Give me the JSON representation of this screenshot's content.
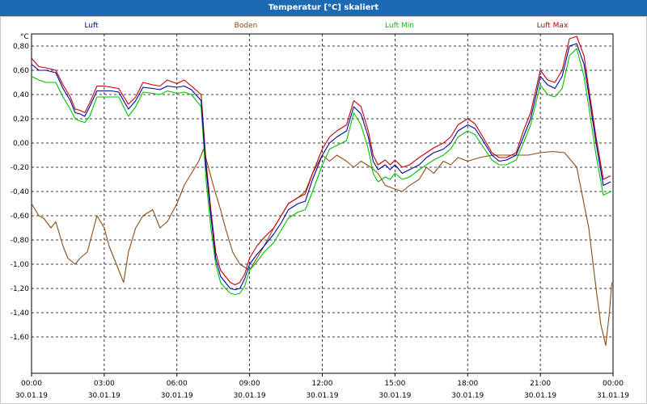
{
  "window": {
    "title": "Temperatur [°C] skaliert"
  },
  "chart_data": {
    "type": "line",
    "title": "Temperatur [°C] skaliert",
    "ylabel": "°C",
    "xlabel": "",
    "ylim": [
      -1.9,
      0.9
    ],
    "xlim": [
      0,
      24
    ],
    "grid": true,
    "yticks": [
      0.8,
      0.6,
      0.4,
      0.2,
      0.0,
      -0.2,
      -0.4,
      -0.6,
      -0.8,
      -1.0,
      -1.2,
      -1.4,
      -1.6
    ],
    "ytick_labels": [
      "0,80",
      "0,60",
      "0,40",
      "0,20",
      "0,00",
      "-0,20",
      "-0,40",
      "-0,60",
      "-0,80",
      "-1,00",
      "-1,20",
      "-1,40",
      "-1,60"
    ],
    "xticks": [
      {
        "hour": 0,
        "time": "00:00",
        "date": "30.01.19"
      },
      {
        "hour": 3,
        "time": "03:00",
        "date": "30.01.19"
      },
      {
        "hour": 6,
        "time": "06:00",
        "date": "30.01.19"
      },
      {
        "hour": 9,
        "time": "09:00",
        "date": "30.01.19"
      },
      {
        "hour": 12,
        "time": "12:00",
        "date": "30.01.19"
      },
      {
        "hour": 15,
        "time": "15:00",
        "date": "30.01.19"
      },
      {
        "hour": 18,
        "time": "18:00",
        "date": "30.01.19"
      },
      {
        "hour": 21,
        "time": "21:00",
        "date": "30.01.19"
      },
      {
        "hour": 24,
        "time": "00:00",
        "date": "31.01.19"
      }
    ],
    "series": [
      {
        "name": "Luft",
        "color": "#0000a0",
        "x": [
          0,
          0.3,
          0.6,
          1,
          1.3,
          1.6,
          1.8,
          2,
          2.2,
          2.4,
          2.7,
          3,
          3.3,
          3.6,
          4,
          4.3,
          4.6,
          5,
          5.3,
          5.6,
          6,
          6.3,
          6.6,
          7,
          7.2,
          7.4,
          7.6,
          7.8,
          8,
          8.2,
          8.4,
          8.6,
          8.8,
          9,
          9.3,
          9.6,
          10,
          10.3,
          10.6,
          11,
          11.3,
          11.6,
          12,
          12.3,
          12.6,
          13,
          13.3,
          13.6,
          13.9,
          14.1,
          14.3,
          14.6,
          14.8,
          15,
          15.3,
          15.6,
          16,
          16.3,
          16.6,
          17,
          17.3,
          17.6,
          18,
          18.3,
          18.6,
          19,
          19.3,
          19.6,
          20,
          20.3,
          20.6,
          21,
          21.3,
          21.6,
          21.9,
          22.2,
          22.5,
          22.8,
          23,
          23.3,
          23.6,
          23.9
        ],
        "y": [
          0.65,
          0.6,
          0.6,
          0.58,
          0.45,
          0.35,
          0.25,
          0.24,
          0.22,
          0.3,
          0.43,
          0.43,
          0.43,
          0.42,
          0.28,
          0.35,
          0.46,
          0.45,
          0.44,
          0.47,
          0.46,
          0.47,
          0.44,
          0.35,
          -0.2,
          -0.6,
          -0.95,
          -1.1,
          -1.15,
          -1.2,
          -1.21,
          -1.2,
          -1.12,
          -1.0,
          -0.92,
          -0.85,
          -0.75,
          -0.66,
          -0.55,
          -0.5,
          -0.48,
          -0.3,
          -0.1,
          0.0,
          0.05,
          0.1,
          0.3,
          0.24,
          0.05,
          -0.15,
          -0.22,
          -0.18,
          -0.22,
          -0.18,
          -0.25,
          -0.22,
          -0.18,
          -0.12,
          -0.08,
          -0.05,
          0.0,
          0.1,
          0.15,
          0.12,
          0.03,
          -0.1,
          -0.15,
          -0.14,
          -0.1,
          0.05,
          0.2,
          0.55,
          0.48,
          0.45,
          0.55,
          0.8,
          0.82,
          0.65,
          0.4,
          0.0,
          -0.35,
          -0.32
        ]
      },
      {
        "name": "Boden",
        "color": "#8b4a14",
        "x": [
          0,
          0.3,
          0.5,
          0.8,
          1,
          1.3,
          1.5,
          1.8,
          2,
          2.3,
          2.5,
          2.7,
          3,
          3.2,
          3.5,
          3.8,
          4,
          4.3,
          4.6,
          5,
          5.3,
          5.6,
          6,
          6.3,
          6.6,
          6.9,
          7.1,
          7.3,
          7.5,
          7.8,
          8,
          8.3,
          8.6,
          9,
          9.3,
          9.6,
          10,
          10.3,
          10.6,
          11,
          11.3,
          11.6,
          12,
          12.3,
          12.6,
          13,
          13.3,
          13.6,
          14,
          14.3,
          14.6,
          15,
          15.3,
          15.6,
          16,
          16.3,
          16.6,
          17,
          17.3,
          17.6,
          18,
          18.5,
          19,
          19.5,
          20,
          20.5,
          21,
          21.5,
          22,
          22.5,
          23,
          23.3,
          23.5,
          23.7,
          23.85,
          23.95
        ],
        "y": [
          -0.5,
          -0.6,
          -0.62,
          -0.7,
          -0.65,
          -0.85,
          -0.95,
          -1.0,
          -0.95,
          -0.9,
          -0.75,
          -0.6,
          -0.7,
          -0.85,
          -1.0,
          -1.15,
          -0.9,
          -0.7,
          -0.6,
          -0.55,
          -0.7,
          -0.65,
          -0.5,
          -0.35,
          -0.25,
          -0.15,
          -0.05,
          -0.2,
          -0.35,
          -0.55,
          -0.7,
          -0.9,
          -1.0,
          -1.05,
          -0.95,
          -0.85,
          -0.7,
          -0.6,
          -0.5,
          -0.45,
          -0.4,
          -0.25,
          -0.1,
          -0.15,
          -0.1,
          -0.15,
          -0.2,
          -0.15,
          -0.2,
          -0.25,
          -0.35,
          -0.38,
          -0.4,
          -0.35,
          -0.3,
          -0.2,
          -0.25,
          -0.15,
          -0.18,
          -0.12,
          -0.15,
          -0.12,
          -0.1,
          -0.1,
          -0.1,
          -0.1,
          -0.08,
          -0.07,
          -0.08,
          -0.2,
          -0.7,
          -1.2,
          -1.5,
          -1.67,
          -1.4,
          -1.15
        ]
      },
      {
        "name": "Luft Min",
        "color": "#00c000",
        "x": [
          0,
          0.3,
          0.6,
          1,
          1.3,
          1.6,
          1.8,
          2,
          2.2,
          2.4,
          2.7,
          3,
          3.3,
          3.6,
          4,
          4.3,
          4.6,
          5,
          5.3,
          5.6,
          6,
          6.3,
          6.6,
          7,
          7.2,
          7.4,
          7.6,
          7.8,
          8,
          8.2,
          8.4,
          8.6,
          8.8,
          9,
          9.3,
          9.6,
          10,
          10.3,
          10.6,
          11,
          11.3,
          11.6,
          12,
          12.3,
          12.6,
          13,
          13.3,
          13.6,
          13.9,
          14.1,
          14.3,
          14.6,
          14.8,
          15,
          15.3,
          15.6,
          16,
          16.3,
          16.6,
          17,
          17.3,
          17.6,
          18,
          18.3,
          18.6,
          19,
          19.3,
          19.6,
          20,
          20.3,
          20.6,
          21,
          21.3,
          21.6,
          21.9,
          22.2,
          22.5,
          22.8,
          23,
          23.3,
          23.6,
          23.9
        ],
        "y": [
          0.55,
          0.52,
          0.5,
          0.5,
          0.38,
          0.28,
          0.2,
          0.18,
          0.17,
          0.22,
          0.38,
          0.38,
          0.38,
          0.38,
          0.22,
          0.3,
          0.42,
          0.41,
          0.4,
          0.43,
          0.41,
          0.42,
          0.4,
          0.3,
          -0.3,
          -0.7,
          -1.0,
          -1.15,
          -1.2,
          -1.24,
          -1.25,
          -1.24,
          -1.18,
          -1.05,
          -0.98,
          -0.9,
          -0.82,
          -0.72,
          -0.62,
          -0.57,
          -0.55,
          -0.4,
          -0.18,
          -0.05,
          -0.02,
          0.02,
          0.25,
          0.15,
          -0.05,
          -0.25,
          -0.32,
          -0.28,
          -0.3,
          -0.25,
          -0.3,
          -0.28,
          -0.22,
          -0.18,
          -0.14,
          -0.1,
          -0.05,
          0.05,
          0.1,
          0.07,
          -0.02,
          -0.14,
          -0.18,
          -0.18,
          -0.14,
          0.0,
          0.15,
          0.48,
          0.4,
          0.38,
          0.45,
          0.72,
          0.78,
          0.55,
          0.3,
          -0.1,
          -0.43,
          -0.4
        ]
      },
      {
        "name": "Luft Max",
        "color": "#c00000",
        "x": [
          0,
          0.3,
          0.6,
          1,
          1.3,
          1.6,
          1.8,
          2,
          2.2,
          2.4,
          2.7,
          3,
          3.3,
          3.6,
          4,
          4.3,
          4.6,
          5,
          5.3,
          5.6,
          6,
          6.3,
          6.6,
          7,
          7.2,
          7.4,
          7.6,
          7.8,
          8,
          8.2,
          8.4,
          8.6,
          8.8,
          9,
          9.3,
          9.6,
          10,
          10.3,
          10.6,
          11,
          11.3,
          11.6,
          12,
          12.3,
          12.6,
          13,
          13.3,
          13.6,
          13.9,
          14.1,
          14.3,
          14.6,
          14.8,
          15,
          15.3,
          15.6,
          16,
          16.3,
          16.6,
          17,
          17.3,
          17.6,
          18,
          18.3,
          18.6,
          19,
          19.3,
          19.6,
          20,
          20.3,
          20.6,
          21,
          21.3,
          21.6,
          21.9,
          22.2,
          22.5,
          22.8,
          23,
          23.3,
          23.6,
          23.9
        ],
        "y": [
          0.7,
          0.63,
          0.62,
          0.6,
          0.48,
          0.38,
          0.28,
          0.27,
          0.25,
          0.33,
          0.47,
          0.47,
          0.46,
          0.45,
          0.32,
          0.38,
          0.5,
          0.48,
          0.47,
          0.52,
          0.49,
          0.52,
          0.47,
          0.4,
          -0.15,
          -0.55,
          -0.9,
          -1.05,
          -1.1,
          -1.15,
          -1.17,
          -1.15,
          -1.08,
          -0.95,
          -0.85,
          -0.78,
          -0.7,
          -0.6,
          -0.5,
          -0.45,
          -0.42,
          -0.25,
          -0.05,
          0.05,
          0.1,
          0.15,
          0.35,
          0.3,
          0.1,
          -0.1,
          -0.18,
          -0.14,
          -0.18,
          -0.14,
          -0.2,
          -0.18,
          -0.12,
          -0.08,
          -0.04,
          0.0,
          0.05,
          0.15,
          0.2,
          0.16,
          0.06,
          -0.08,
          -0.12,
          -0.12,
          -0.08,
          0.1,
          0.25,
          0.6,
          0.52,
          0.5,
          0.6,
          0.86,
          0.88,
          0.72,
          0.45,
          0.05,
          -0.3,
          -0.27
        ]
      }
    ]
  }
}
